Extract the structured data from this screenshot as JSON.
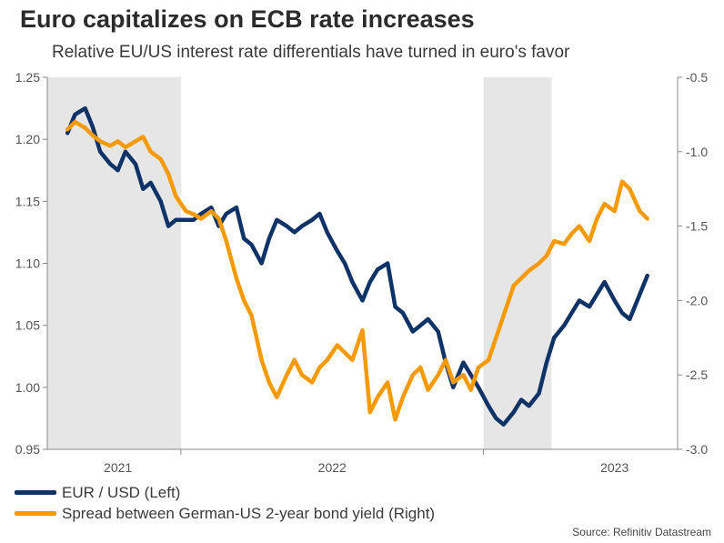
{
  "header": {
    "title": "Euro capitalizes on ECB rate increases",
    "subtitle": "Relative EU/US interest rate differentials have turned in euro's favor"
  },
  "source": "Source: Refinitiv Datastream",
  "chart_data": {
    "type": "line",
    "title": "Euro capitalizes on ECB rate increases",
    "subtitle": "Relative EU/US interest rate differentials have turned in euro's favor",
    "x_range": [
      2020.92,
      2023.42
    ],
    "x_ticks": [
      "2021",
      "2022",
      "2023"
    ],
    "shaded_periods": [
      [
        2020.92,
        2021.45
      ],
      [
        2022.65,
        2022.92
      ]
    ],
    "left_axis": {
      "ylim": [
        0.95,
        1.25
      ],
      "ticks": [
        "0.95",
        "1.00",
        "1.05",
        "1.10",
        "1.15",
        "1.20",
        "1.25"
      ]
    },
    "right_axis": {
      "ylim": [
        -3.0,
        -0.5
      ],
      "ticks": [
        "-3.0",
        "-2.5",
        "-2.0",
        "-1.5",
        "-1.0",
        "-0.5"
      ]
    },
    "series": [
      {
        "name": "EUR / USD (Left)",
        "axis": "left",
        "color": "#0f3366",
        "x": [
          2021.0,
          2021.03,
          2021.07,
          2021.1,
          2021.13,
          2021.17,
          2021.2,
          2021.23,
          2021.27,
          2021.3,
          2021.33,
          2021.37,
          2021.4,
          2021.43,
          2021.47,
          2021.5,
          2021.53,
          2021.57,
          2021.6,
          2021.63,
          2021.67,
          2021.7,
          2021.73,
          2021.77,
          2021.8,
          2021.83,
          2021.87,
          2021.9,
          2021.93,
          2021.97,
          2022.0,
          2022.03,
          2022.07,
          2022.1,
          2022.13,
          2022.17,
          2022.2,
          2022.23,
          2022.27,
          2022.3,
          2022.33,
          2022.37,
          2022.4,
          2022.43,
          2022.47,
          2022.5,
          2022.53,
          2022.57,
          2022.6,
          2022.63,
          2022.67,
          2022.7,
          2022.73,
          2022.77,
          2022.8,
          2022.83,
          2022.87,
          2022.9,
          2022.93,
          2022.97,
          2023.0,
          2023.03,
          2023.07,
          2023.1,
          2023.13,
          2023.17,
          2023.2,
          2023.23,
          2023.27,
          2023.3
        ],
        "values": [
          1.205,
          1.22,
          1.225,
          1.21,
          1.19,
          1.18,
          1.175,
          1.19,
          1.18,
          1.16,
          1.165,
          1.15,
          1.13,
          1.135,
          1.135,
          1.135,
          1.14,
          1.145,
          1.13,
          1.14,
          1.145,
          1.12,
          1.115,
          1.1,
          1.12,
          1.135,
          1.13,
          1.125,
          1.13,
          1.135,
          1.14,
          1.125,
          1.11,
          1.1,
          1.085,
          1.07,
          1.085,
          1.095,
          1.1,
          1.065,
          1.06,
          1.045,
          1.05,
          1.055,
          1.045,
          1.02,
          1.0,
          1.02,
          1.01,
          1.0,
          0.985,
          0.975,
          0.97,
          0.98,
          0.99,
          0.985,
          0.995,
          1.02,
          1.04,
          1.05,
          1.06,
          1.07,
          1.065,
          1.075,
          1.085,
          1.07,
          1.06,
          1.055,
          1.075,
          1.09
        ]
      },
      {
        "name": "Spread between German-US 2-year bond yield (Right)",
        "axis": "right",
        "color": "#f59a00",
        "x": [
          2021.0,
          2021.03,
          2021.07,
          2021.1,
          2021.13,
          2021.17,
          2021.2,
          2021.23,
          2021.27,
          2021.3,
          2021.33,
          2021.37,
          2021.4,
          2021.43,
          2021.47,
          2021.5,
          2021.53,
          2021.57,
          2021.6,
          2021.63,
          2021.67,
          2021.7,
          2021.73,
          2021.77,
          2021.8,
          2021.83,
          2021.87,
          2021.9,
          2021.93,
          2021.97,
          2022.0,
          2022.03,
          2022.07,
          2022.1,
          2022.13,
          2022.17,
          2022.2,
          2022.23,
          2022.27,
          2022.3,
          2022.33,
          2022.37,
          2022.4,
          2022.43,
          2022.47,
          2022.5,
          2022.53,
          2022.57,
          2022.6,
          2022.63,
          2022.67,
          2022.7,
          2022.73,
          2022.77,
          2022.8,
          2022.83,
          2022.87,
          2022.9,
          2022.93,
          2022.97,
          2023.0,
          2023.03,
          2023.07,
          2023.1,
          2023.13,
          2023.17,
          2023.2,
          2023.23,
          2023.27,
          2023.3
        ],
        "values": [
          -0.85,
          -0.8,
          -0.84,
          -0.89,
          -0.93,
          -0.96,
          -0.93,
          -0.97,
          -0.93,
          -0.9,
          -1.0,
          -1.05,
          -1.15,
          -1.3,
          -1.4,
          -1.42,
          -1.45,
          -1.4,
          -1.45,
          -1.6,
          -1.85,
          -2.0,
          -2.1,
          -2.4,
          -2.55,
          -2.65,
          -2.5,
          -2.4,
          -2.5,
          -2.55,
          -2.45,
          -2.4,
          -2.3,
          -2.35,
          -2.4,
          -2.2,
          -2.75,
          -2.65,
          -2.55,
          -2.8,
          -2.65,
          -2.5,
          -2.45,
          -2.6,
          -2.5,
          -2.4,
          -2.55,
          -2.5,
          -2.6,
          -2.45,
          -2.4,
          -2.25,
          -2.1,
          -1.9,
          -1.85,
          -1.8,
          -1.75,
          -1.7,
          -1.6,
          -1.62,
          -1.55,
          -1.5,
          -1.6,
          -1.45,
          -1.35,
          -1.4,
          -1.2,
          -1.25,
          -1.4,
          -1.45
        ]
      }
    ]
  }
}
